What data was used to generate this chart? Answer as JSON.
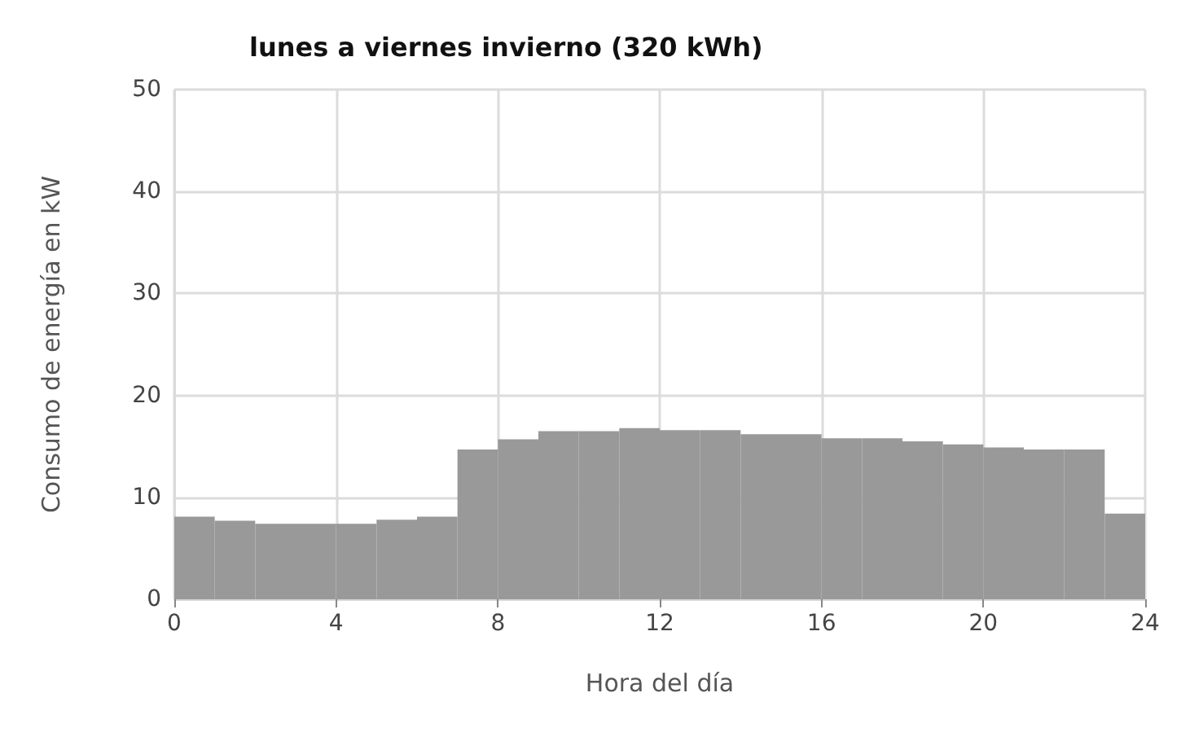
{
  "chart_data": {
    "type": "histogram",
    "title": "lunes a viernes invierno (320 kWh)",
    "xlabel": "Hora del día",
    "ylabel": "Consumo de energía en kW",
    "bins": [
      0,
      1,
      2,
      3,
      4,
      5,
      6,
      7,
      8,
      9,
      10,
      11,
      12,
      13,
      14,
      15,
      16,
      17,
      18,
      19,
      20,
      21,
      22,
      23,
      24
    ],
    "values": [
      8.1,
      7.7,
      7.4,
      7.4,
      7.4,
      7.8,
      8.1,
      14.7,
      15.7,
      16.5,
      16.5,
      16.8,
      16.6,
      16.6,
      16.2,
      16.2,
      15.8,
      15.8,
      15.5,
      15.2,
      14.9,
      14.7,
      14.7,
      8.4
    ],
    "color": "#999999",
    "xlim": [
      0,
      24
    ],
    "xticks": [
      0,
      4,
      8,
      12,
      16,
      20,
      24
    ],
    "ylim": [
      0,
      50
    ],
    "yticks": [
      0,
      10,
      20,
      30,
      40,
      50
    ],
    "grid": true
  }
}
